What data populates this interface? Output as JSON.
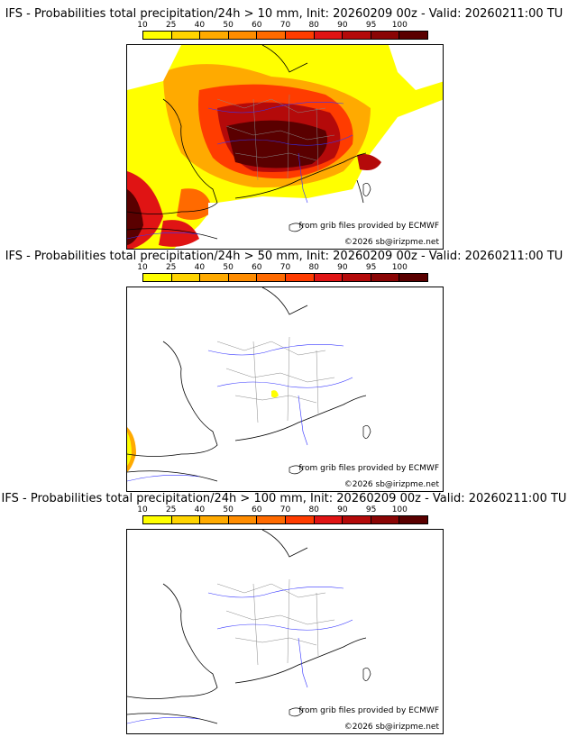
{
  "colorbar": {
    "ticks": [
      "10",
      "25",
      "40",
      "50",
      "60",
      "70",
      "80",
      "90",
      "95",
      "100"
    ],
    "colors": [
      "#ffff00",
      "#ffd400",
      "#ffaa00",
      "#ff8c00",
      "#ff6a00",
      "#ff3c00",
      "#e01414",
      "#b40a0a",
      "#8a0505",
      "#5a0000"
    ]
  },
  "panels": [
    {
      "title": "IFS - Probabilities total precipitation/24h > 10 mm, Init: 20260209 00z - Valid: 20260211:00 TU"
    },
    {
      "title": "IFS - Probabilities total precipitation/24h > 50 mm, Init: 20260209 00z - Valid: 20260211:00 TU"
    },
    {
      "title": "IFS - Probabilities total precipitation/24h > 100 mm, Init: 20260209 00z - Valid: 20260211:00 TU"
    }
  ],
  "credits": {
    "source": "from grib files provided by ECMWF",
    "copyright": "©2026 sb@irizpme.net"
  }
}
